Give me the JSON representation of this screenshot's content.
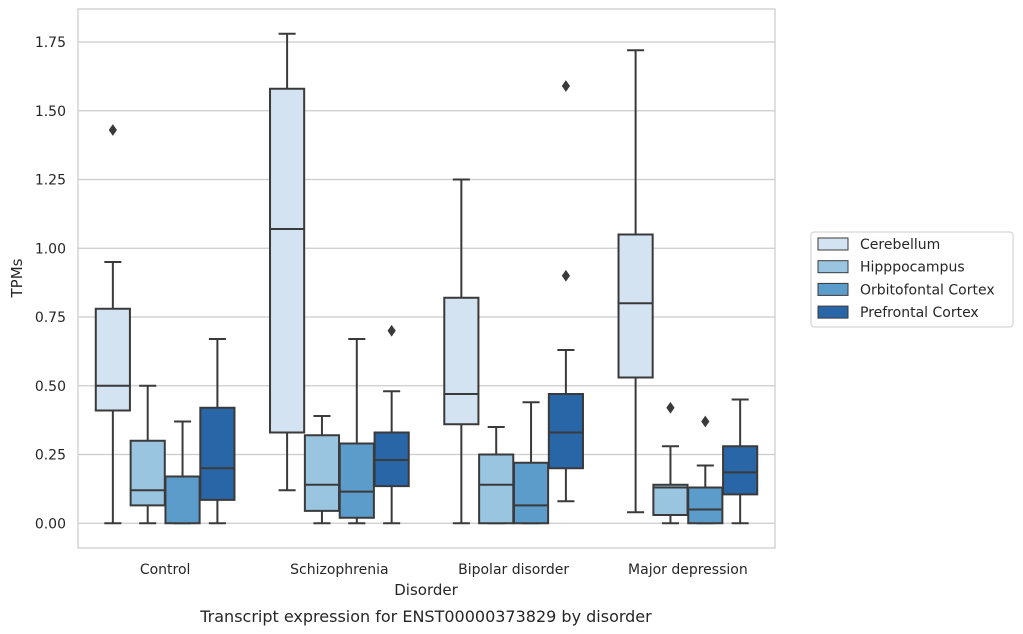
{
  "chart_data": {
    "type": "box",
    "caption": "Transcript expression for ENST00000373829 by disorder",
    "xlabel": "Disorder",
    "ylabel": "TPMs",
    "ylim": [
      -0.09,
      1.87
    ],
    "yticks": [
      "0.00",
      "0.25",
      "0.50",
      "0.75",
      "1.00",
      "1.25",
      "1.50",
      "1.75"
    ],
    "ytick_values": [
      0,
      0.25,
      0.5,
      0.75,
      1.0,
      1.25,
      1.5,
      1.75
    ],
    "categories": [
      "Control",
      "Schizophrenia",
      "Bipolar disorder",
      "Major depression"
    ],
    "grid": "horizontal",
    "legend_position": "right",
    "series": [
      {
        "name": "Cerebellum",
        "color": "#d4e3f2",
        "boxes": [
          {
            "min": 0.0,
            "q1": 0.41,
            "median": 0.5,
            "q3": 0.78,
            "max": 0.95,
            "outliers": [
              1.43
            ]
          },
          {
            "min": 0.12,
            "q1": 0.33,
            "median": 1.07,
            "q3": 1.58,
            "max": 1.78,
            "outliers": []
          },
          {
            "min": 0.0,
            "q1": 0.36,
            "median": 0.47,
            "q3": 0.82,
            "max": 1.25,
            "outliers": []
          },
          {
            "min": 0.04,
            "q1": 0.53,
            "median": 0.8,
            "q3": 1.05,
            "max": 1.72,
            "outliers": []
          }
        ]
      },
      {
        "name": "Hipppocampus",
        "color": "#9ac5e0",
        "boxes": [
          {
            "min": 0.0,
            "q1": 0.065,
            "median": 0.12,
            "q3": 0.3,
            "max": 0.5,
            "outliers": []
          },
          {
            "min": 0.0,
            "q1": 0.045,
            "median": 0.14,
            "q3": 0.32,
            "max": 0.39,
            "outliers": []
          },
          {
            "min": 0.0,
            "q1": 0.0,
            "median": 0.14,
            "q3": 0.25,
            "max": 0.35,
            "outliers": []
          },
          {
            "min": 0.0,
            "q1": 0.03,
            "median": 0.13,
            "q3": 0.14,
            "max": 0.28,
            "outliers": [
              0.42
            ]
          }
        ]
      },
      {
        "name": "Orbitofontal Cortex",
        "color": "#5c9ccb",
        "boxes": [
          {
            "min": 0.0,
            "q1": 0.0,
            "median": 0.17,
            "q3": 0.17,
            "max": 0.37,
            "outliers": []
          },
          {
            "min": 0.0,
            "q1": 0.02,
            "median": 0.115,
            "q3": 0.29,
            "max": 0.67,
            "outliers": []
          },
          {
            "min": 0.0,
            "q1": 0.0,
            "median": 0.065,
            "q3": 0.22,
            "max": 0.44,
            "outliers": []
          },
          {
            "min": 0.0,
            "q1": 0.0,
            "median": 0.05,
            "q3": 0.13,
            "max": 0.21,
            "outliers": [
              0.37
            ]
          }
        ]
      },
      {
        "name": "Prefrontal Cortex",
        "color": "#2866a8",
        "boxes": [
          {
            "min": 0.0,
            "q1": 0.085,
            "median": 0.2,
            "q3": 0.42,
            "max": 0.67,
            "outliers": []
          },
          {
            "min": 0.0,
            "q1": 0.135,
            "median": 0.23,
            "q3": 0.33,
            "max": 0.48,
            "outliers": [
              0.7
            ]
          },
          {
            "min": 0.08,
            "q1": 0.2,
            "median": 0.33,
            "q3": 0.47,
            "max": 0.63,
            "outliers": [
              0.9,
              1.59
            ]
          },
          {
            "min": 0.0,
            "q1": 0.105,
            "median": 0.185,
            "q3": 0.28,
            "max": 0.45,
            "outliers": []
          }
        ]
      }
    ]
  }
}
